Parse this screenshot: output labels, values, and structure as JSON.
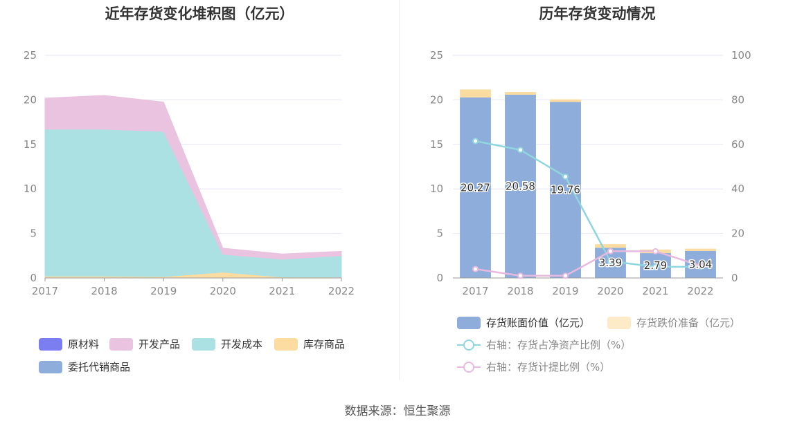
{
  "source": "数据来源：恒生聚源",
  "colors": {
    "raw": "#7b7ef0",
    "finished": "#eac3e0",
    "dev_cost": "#abe1e3",
    "stock_goods": "#fcdca0",
    "consign": "#8fadda",
    "book": "#8fadda",
    "impair": "#fbdca0",
    "ratio_line": "#8fd6de",
    "provision_line": "#e8b9de",
    "grid": "#e6e6f4",
    "axis": "#999999"
  },
  "chart_data": [
    {
      "type": "area",
      "title": "近年存货变化堆积图（亿元）",
      "x": [
        "2017",
        "2018",
        "2019",
        "2020",
        "2021",
        "2022"
      ],
      "ylim": [
        0,
        25
      ],
      "yticks": [
        "0",
        "5",
        "10",
        "15",
        "20",
        "25"
      ],
      "stacked": true,
      "series": [
        {
          "name": "原材料",
          "values": [
            0.05,
            0.05,
            0.05,
            0.05,
            0.05,
            0.05
          ]
        },
        {
          "name": "委托代销商品",
          "values": [
            0.0,
            0.0,
            0.0,
            0.0,
            0.0,
            0.0
          ]
        },
        {
          "name": "库存商品",
          "values": [
            0.15,
            0.15,
            0.1,
            0.6,
            0.05,
            0.05
          ]
        },
        {
          "name": "开发成本",
          "values": [
            16.5,
            16.5,
            16.3,
            2.0,
            2.0,
            2.4
          ]
        },
        {
          "name": "开发产品",
          "values": [
            3.5,
            3.8,
            3.3,
            0.7,
            0.6,
            0.5
          ]
        }
      ],
      "legend": [
        "原材料",
        "开发产品",
        "开发成本",
        "库存商品",
        "委托代销商品"
      ],
      "legend_position": "bottom",
      "grid": true
    },
    {
      "type": "bar",
      "title": "历年存货变动情况",
      "categories": [
        "2017",
        "2018",
        "2019",
        "2020",
        "2021",
        "2022"
      ],
      "ylim": [
        0,
        25
      ],
      "yticks": [
        "0",
        "5",
        "10",
        "15",
        "20",
        "25"
      ],
      "y2lim": [
        0,
        100
      ],
      "y2ticks": [
        "0",
        "20",
        "40",
        "60",
        "80",
        "100"
      ],
      "stacked": true,
      "series": [
        {
          "name": "存货账面价值（亿元）",
          "type": "bar",
          "values": [
            20.27,
            20.58,
            19.76,
            3.39,
            2.79,
            3.04
          ],
          "labels": [
            "20.27",
            "20.58",
            "19.76",
            "3.39",
            "2.79",
            "3.04"
          ]
        },
        {
          "name": "存货跌价准备（亿元）",
          "type": "bar",
          "values": [
            0.9,
            0.3,
            0.3,
            0.4,
            0.4,
            0.25
          ]
        },
        {
          "name": "右轴：存货占净资产比例（%）",
          "type": "line",
          "axis": "right",
          "values": [
            61.5,
            57.5,
            45.5,
            7.5,
            5.0,
            5.0
          ]
        },
        {
          "name": "右轴：存货计提比例（%）",
          "type": "line",
          "axis": "right",
          "values": [
            4.0,
            1.0,
            1.0,
            12.0,
            12.0,
            5.5
          ]
        }
      ],
      "legend_position": "bottom",
      "grid": true
    }
  ]
}
